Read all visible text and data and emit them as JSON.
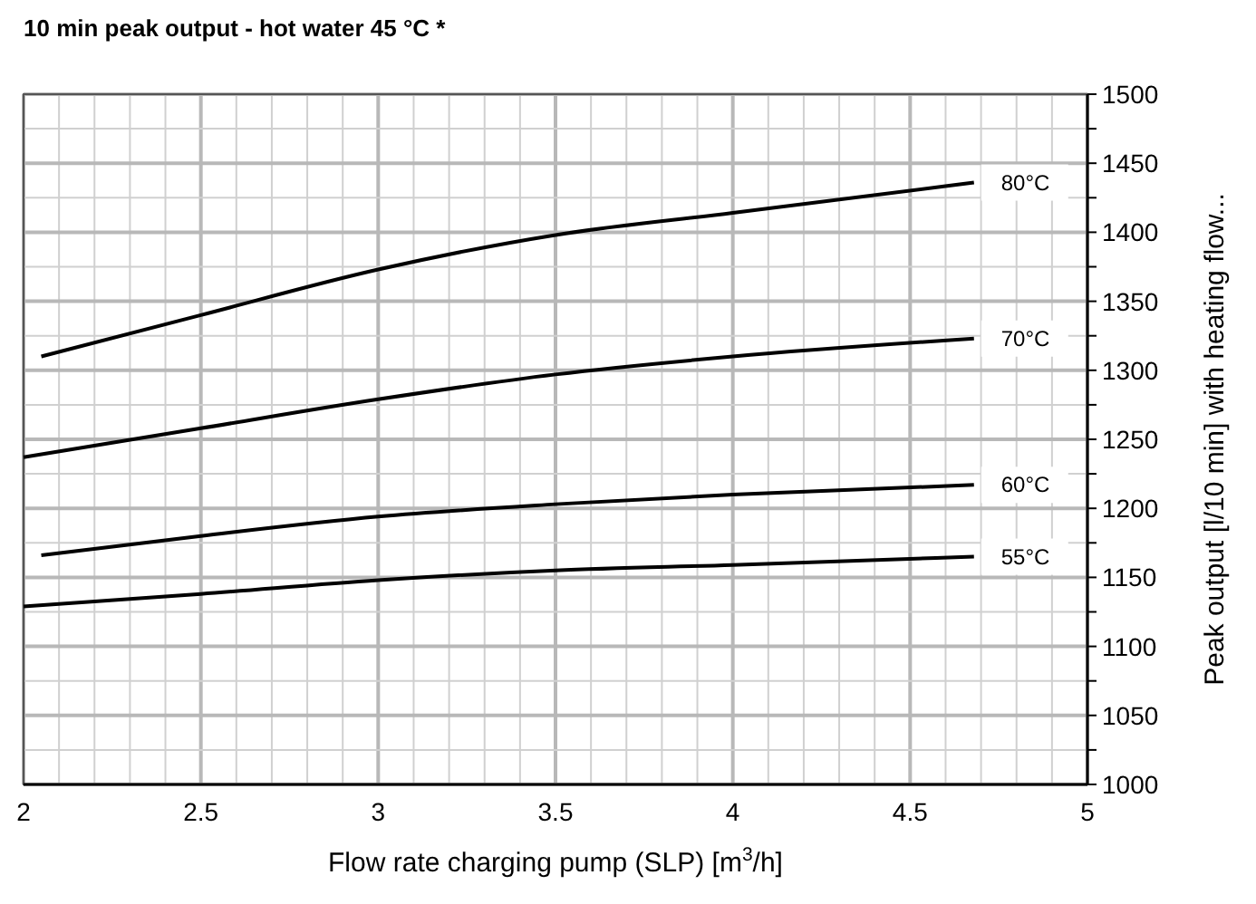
{
  "chart_data": {
    "type": "line",
    "title": "10 min peak output - hot water 45 °C *",
    "xlabel": "Flow rate charging pump (SLP) [m$^{3}$/h]",
    "ylabel": "Peak output [l/10 min] with heating flow...",
    "xlim": [
      2,
      5
    ],
    "ylim": [
      1000,
      1500
    ],
    "xticks": [
      2,
      {
        "value": 2.1,
        "label": null
      },
      {
        "value": 2.2,
        "label": null
      },
      {
        "value": 2.3,
        "label": null
      },
      {
        "value": 2.4,
        "label": null
      },
      2.5,
      {
        "value": 2.6,
        "label": null
      },
      {
        "value": 2.7,
        "label": null
      },
      {
        "value": 2.8,
        "label": null
      },
      {
        "value": 2.9,
        "label": null
      },
      3,
      {
        "value": 3.1,
        "label": null
      },
      {
        "value": 3.2,
        "label": null
      },
      {
        "value": 3.3,
        "label": null
      },
      {
        "value": 3.4,
        "label": null
      },
      3.5,
      {
        "value": 3.6,
        "label": null
      },
      {
        "value": 3.7,
        "label": null
      },
      {
        "value": 3.8,
        "label": null
      },
      {
        "value": 3.9,
        "label": null
      },
      4,
      {
        "value": 4.1,
        "label": null
      },
      {
        "value": 4.2,
        "label": null
      },
      {
        "value": 4.3,
        "label": null
      },
      {
        "value": 4.4,
        "label": null
      },
      4.5,
      {
        "value": 4.6,
        "label": null
      },
      {
        "value": 4.7,
        "label": null
      },
      {
        "value": 4.8,
        "label": null
      },
      {
        "value": 4.9,
        "label": null
      },
      5
    ],
    "yticks": [
      1000,
      {
        "value": 1025,
        "label": null
      },
      1050,
      {
        "value": 1075,
        "label": null
      },
      1100,
      {
        "value": 1125,
        "label": null
      },
      1150,
      {
        "value": 1175,
        "label": null
      },
      1200,
      {
        "value": 1225,
        "label": null
      },
      1250,
      {
        "value": 1275,
        "label": null
      },
      1300,
      {
        "value": 1325,
        "label": null
      },
      1350,
      {
        "value": 1375,
        "label": null
      },
      1400,
      {
        "value": 1425,
        "label": null
      },
      1450,
      {
        "value": 1475,
        "label": null
      },
      1500
    ],
    "grid": true,
    "line_style": "solid",
    "marker": "none",
    "series": [
      {
        "name": "80°C",
        "color": "#000000",
        "x": [
          2.05,
          2.5,
          3,
          3.5,
          4,
          4.68
        ],
        "values": [
          1310,
          1340,
          1373,
          1398,
          1414,
          1436
        ]
      },
      {
        "name": "70°C",
        "color": "#000000",
        "x": [
          2,
          2.5,
          3,
          3.5,
          4,
          4.68
        ],
        "values": [
          1237,
          1258,
          1279,
          1297,
          1310,
          1323
        ]
      },
      {
        "name": "60°C",
        "color": "#000000",
        "x": [
          2.05,
          2.5,
          3,
          3.5,
          4,
          4.68
        ],
        "values": [
          1166,
          1180,
          1194,
          1203,
          1210,
          1217
        ]
      },
      {
        "name": "55°C",
        "color": "#000000",
        "x": [
          2,
          2.5,
          3,
          3.5,
          4,
          4.68
        ],
        "values": [
          1129,
          1138,
          1148,
          1155,
          1159,
          1165
        ]
      }
    ]
  }
}
